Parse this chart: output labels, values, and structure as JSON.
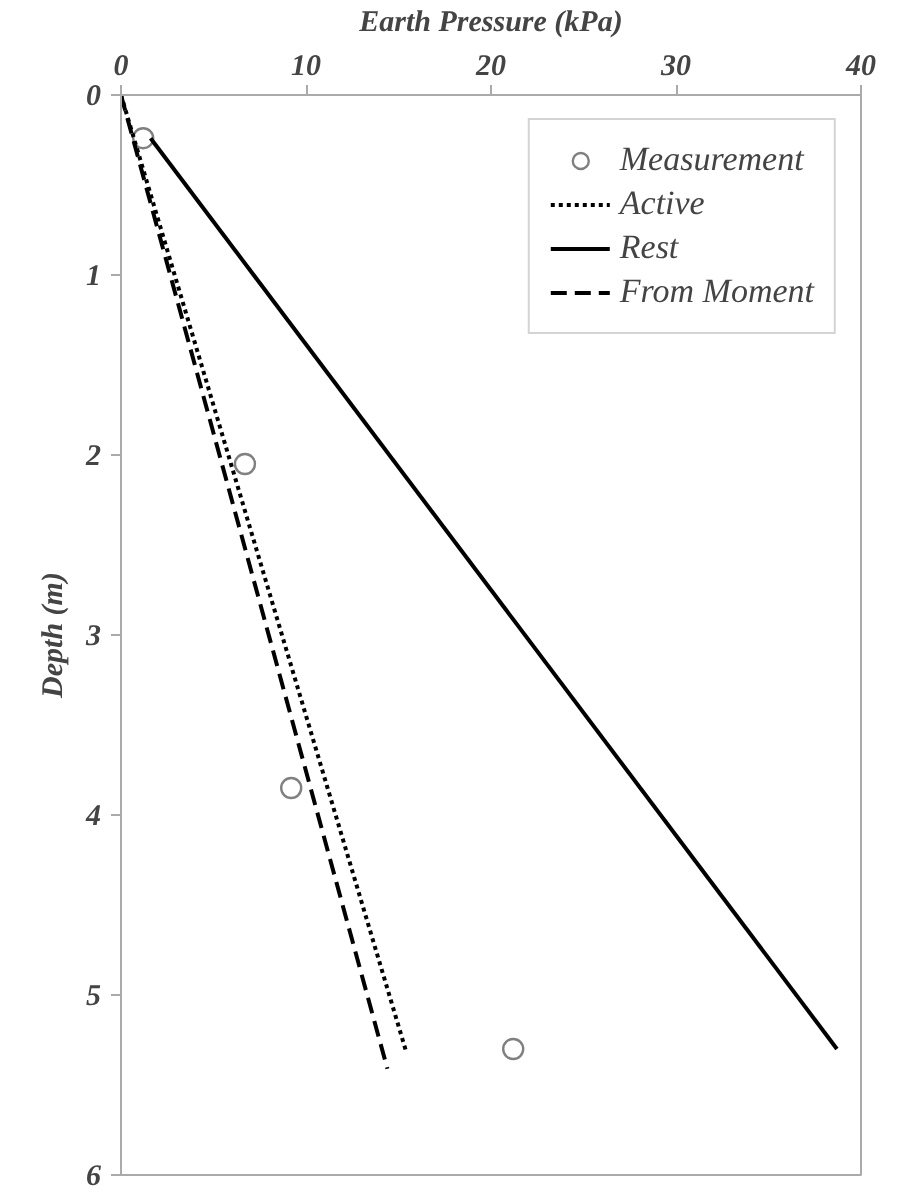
{
  "chart_data": {
    "type": "line",
    "xlabel": "Earth Pressure (kPa)",
    "ylabel": "Depth (m)",
    "xlim": [
      0,
      40
    ],
    "xticks": [
      0,
      10,
      20,
      30,
      40
    ],
    "ylim": [
      6,
      0
    ],
    "yticks": [
      0,
      1,
      2,
      3,
      4,
      5,
      6
    ],
    "grid": false,
    "legend": "top right",
    "series": [
      {
        "name": "Measurement",
        "type": "scatter",
        "marker": "circle",
        "color": "#808080",
        "x": [
          1.2,
          6.7,
          9.2,
          21.2
        ],
        "values": [
          0.24,
          2.05,
          3.85,
          5.3
        ]
      },
      {
        "name": "Active",
        "line_style": "dotted",
        "color": "#000000",
        "x": [
          0,
          15.4
        ],
        "values": [
          0,
          5.31
        ]
      },
      {
        "name": "Rest",
        "line_style": "solid",
        "color": "#000000",
        "x": [
          1.6,
          38.7
        ],
        "values": [
          0.24,
          5.3
        ]
      },
      {
        "name": "From Moment",
        "line_style": "dashed",
        "color": "#000000",
        "x": [
          0,
          14.4
        ],
        "values": [
          0,
          5.41
        ]
      }
    ]
  }
}
